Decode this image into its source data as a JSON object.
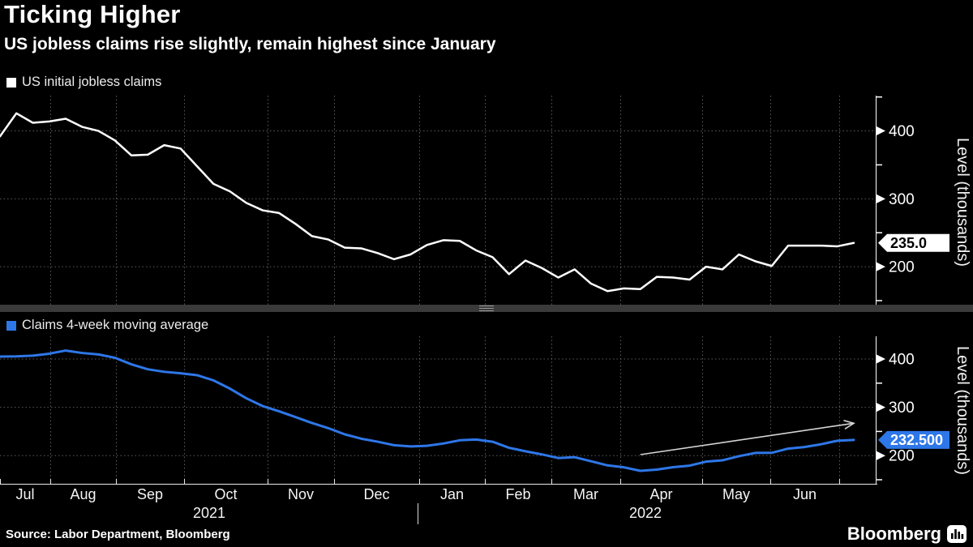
{
  "header": {
    "title": "Ticking Higher",
    "subtitle": "US jobless claims rise slightly, remain highest since January"
  },
  "panels": [
    {
      "legend": "US initial jobless claims",
      "axis_label": "Level (thousands)",
      "last_value_label": "235.0",
      "series_color": "#ffffff"
    },
    {
      "legend": "Claims 4-week moving average",
      "axis_label": "Level (thousands)",
      "last_value_label": "232.500",
      "series_color": "#2e77e8"
    }
  ],
  "x_axis": {
    "months": [
      "Jul",
      "Aug",
      "Sep",
      "Oct",
      "Nov",
      "Dec",
      "Jan",
      "Feb",
      "Mar",
      "Apr",
      "May",
      "Jun"
    ],
    "years": [
      "2021",
      "2022"
    ]
  },
  "footer": {
    "source": "Source: Labor Department, Bloomberg",
    "brand": "Bloomberg"
  },
  "chart_data": {
    "type": "line",
    "title": "Ticking Higher",
    "subtitle": "US jobless claims rise slightly, remain highest since January",
    "ylabel": "Level (thousands)",
    "yticks": [
      200,
      300,
      400
    ],
    "ylim_top_panel": [
      139,
      452
    ],
    "ylim_bottom_panel": [
      142,
      447
    ],
    "grid": true,
    "legend_position": "top-left of each panel",
    "x": {
      "frequency": "weekly",
      "start": "2021-07-03",
      "end": "2022-07-02",
      "dates": [
        "2021-07-03",
        "2021-07-10",
        "2021-07-17",
        "2021-07-24",
        "2021-07-31",
        "2021-08-07",
        "2021-08-14",
        "2021-08-21",
        "2021-08-28",
        "2021-09-04",
        "2021-09-11",
        "2021-09-18",
        "2021-09-25",
        "2021-10-02",
        "2021-10-09",
        "2021-10-16",
        "2021-10-23",
        "2021-10-30",
        "2021-11-06",
        "2021-11-13",
        "2021-11-20",
        "2021-11-27",
        "2021-12-04",
        "2021-12-11",
        "2021-12-18",
        "2021-12-25",
        "2022-01-01",
        "2022-01-08",
        "2022-01-15",
        "2022-01-22",
        "2022-01-29",
        "2022-02-05",
        "2022-02-12",
        "2022-02-19",
        "2022-02-26",
        "2022-03-05",
        "2022-03-12",
        "2022-03-19",
        "2022-03-26",
        "2022-04-02",
        "2022-04-09",
        "2022-04-16",
        "2022-04-23",
        "2022-04-30",
        "2022-05-07",
        "2022-05-14",
        "2022-05-21",
        "2022-05-28",
        "2022-06-04",
        "2022-06-11",
        "2022-06-18",
        "2022-06-25",
        "2022-07-02"
      ]
    },
    "series": [
      {
        "name": "US initial jobless claims",
        "panel": "top",
        "color": "#ffffff",
        "last_label": "235.0",
        "last_value": 235.0,
        "values": [
          392,
          426,
          412,
          414,
          418,
          406,
          400,
          386,
          364,
          365,
          379,
          374,
          348,
          322,
          311,
          294,
          283,
          279,
          263,
          245,
          240,
          228,
          227,
          220,
          211,
          218,
          232,
          239,
          238,
          224,
          214,
          189,
          209,
          198,
          184,
          196,
          175,
          164,
          168,
          167,
          185,
          184,
          181,
          200,
          196,
          218,
          208,
          201,
          231,
          231,
          231,
          230,
          235
        ]
      },
      {
        "name": "Claims 4-week moving average",
        "panel": "bottom",
        "color": "#2e77e8",
        "last_label": "232.500",
        "last_value": 232.5,
        "values": [
          405,
          405.5,
          407,
          411,
          417.5,
          412.5,
          409.5,
          402.5,
          389,
          378.75,
          373.5,
          370.5,
          366.5,
          355.75,
          338.75,
          318.75,
          302.5,
          291.75,
          279.75,
          267.5,
          256.75,
          244,
          235,
          228.75,
          221.5,
          219,
          220.25,
          225,
          231.75,
          233.25,
          228.75,
          216.25,
          209,
          202.5,
          195,
          196.75,
          188.25,
          179.75,
          175.75,
          168.5,
          171,
          176,
          179.25,
          187.5,
          190.25,
          198.75,
          205.5,
          205.75,
          214.5,
          217.75,
          223.5,
          230.75,
          232.5
        ]
      }
    ],
    "annotations": [
      {
        "type": "arrow",
        "panel": "bottom",
        "from": {
          "week_index": 39,
          "value": 202
        },
        "to": {
          "week_index": 52,
          "value": 267
        },
        "color": "#d5d5d5"
      }
    ]
  }
}
